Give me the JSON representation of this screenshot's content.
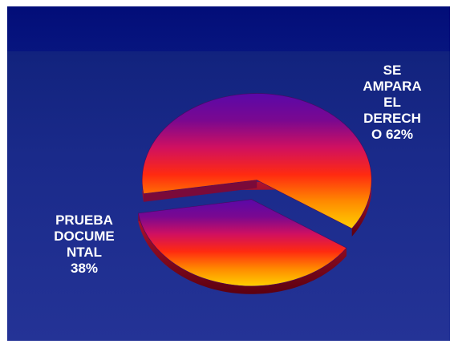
{
  "chart_data": {
    "type": "pie",
    "slices": [
      {
        "label_lines": [
          "SE",
          "AMPARA",
          "EL",
          "DERECH",
          "O 62%"
        ],
        "value": 62
      },
      {
        "label_lines": [
          "PRUEBA",
          "DOCUME",
          "NTAL",
          "38%"
        ],
        "value": 38
      }
    ],
    "exploded": true,
    "style": "3d",
    "gradient_colors": [
      "#5a08a8",
      "#7a0890",
      "#d01060",
      "#ff2a10",
      "#ff8a00",
      "#ffd000"
    ],
    "edge_color": "#6a0012"
  }
}
